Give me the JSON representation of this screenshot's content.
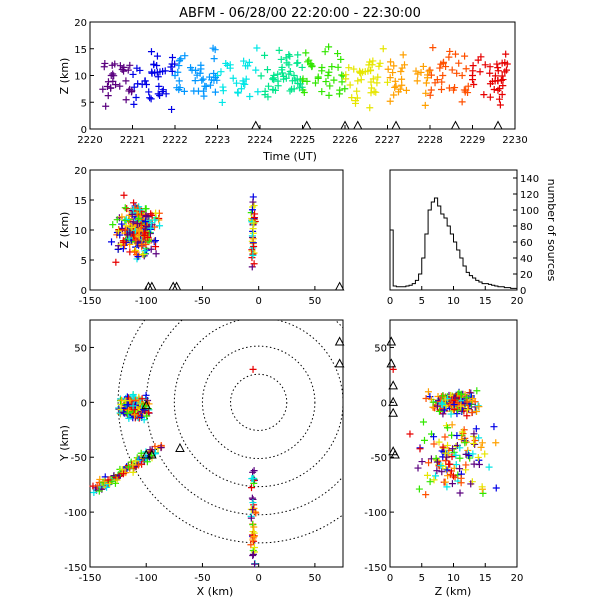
{
  "title": "ABFM - 06/28/00 22:20:00 - 22:30:00",
  "chart_data": [
    {
      "id": "time_height",
      "type": "scatter",
      "marker": "plus",
      "xlabel": "Time (UT)",
      "ylabel": "Z (km)",
      "xlim": [
        0,
        10
      ],
      "ylim": [
        0,
        20
      ],
      "xticks": [
        "2220",
        "2221",
        "2222",
        "2223",
        "2224",
        "2225",
        "2226",
        "2227",
        "2228",
        "2229",
        "2230"
      ],
      "yticks": [
        "0",
        "5",
        "10",
        "15",
        "20"
      ],
      "color_scale": [
        "#000000",
        "#5a007f",
        "#0000e6",
        "#0096ff",
        "#00e6e6",
        "#00e68c",
        "#32e600",
        "#e6e600",
        "#ffa000",
        "#ff5000",
        "#e60000"
      ],
      "triangles_x": [
        3.9,
        5.1,
        6.0,
        6.3,
        7.2,
        8.6,
        9.6
      ],
      "series": [
        {
          "x": [
            0.5,
            0.7,
            0.9,
            1.3,
            1.5,
            1.7,
            2.0
          ],
          "y": [
            10,
            8,
            11,
            9,
            12,
            7,
            10
          ]
        },
        {
          "x": [
            2.1,
            2.4,
            2.7,
            3.0,
            3.3,
            3.6
          ],
          "y": [
            9,
            11,
            8,
            10,
            12,
            9
          ]
        },
        {
          "x": [
            3.9,
            4.2,
            4.5,
            4.8,
            5.0,
            5.2
          ],
          "y": [
            11,
            8,
            13,
            10,
            9,
            12
          ]
        },
        {
          "x": [
            5.6,
            5.9,
            6.3,
            6.6,
            6.9,
            7.2
          ],
          "y": [
            10,
            13,
            9,
            11,
            15,
            8
          ]
        },
        {
          "x": [
            7.4,
            7.7,
            8.0,
            8.3,
            8.6,
            8.9
          ],
          "y": [
            12,
            9,
            11,
            10,
            14,
            8
          ]
        },
        {
          "x": [
            9.0,
            9.3,
            9.6,
            9.8
          ],
          "y": [
            10,
            12,
            9,
            11
          ]
        }
      ]
    },
    {
      "id": "xz_panel",
      "type": "scatter",
      "marker": "plus",
      "ylabel": "Z (km)",
      "xlim": [
        -150,
        75
      ],
      "ylim": [
        0,
        20
      ],
      "xticks": [
        "-150",
        "-100",
        "-50",
        "0",
        "50"
      ],
      "yticks": [
        "0",
        "5",
        "10",
        "15",
        "20"
      ],
      "triangles_x": [
        -98,
        -95,
        -76,
        -73,
        72
      ],
      "clusters": [
        {
          "x_center": -108,
          "z_center": 10,
          "count": 60
        },
        {
          "x_center": -5,
          "z_center": 10,
          "count": 15
        }
      ]
    },
    {
      "id": "height_histogram",
      "type": "bar",
      "xlim": [
        0,
        20
      ],
      "ylim": [
        0,
        150
      ],
      "xticks": [
        "0",
        "5",
        "10",
        "15",
        "20"
      ],
      "yticks": [
        "0",
        "20",
        "40",
        "60",
        "80",
        "100",
        "120",
        "140"
      ],
      "ylabel_right": "number of sources",
      "bin_width": 0.5,
      "values": [
        75,
        5,
        4,
        4,
        4,
        5,
        6,
        8,
        12,
        20,
        40,
        70,
        100,
        110,
        115,
        105,
        95,
        90,
        80,
        70,
        60,
        50,
        40,
        30,
        22,
        18,
        15,
        12,
        10,
        8,
        8,
        7,
        6,
        5,
        4,
        4,
        3,
        3,
        2,
        2
      ]
    },
    {
      "id": "plan_view",
      "type": "scatter",
      "marker": "plus",
      "xlabel": "X (km)",
      "ylabel": "Y (km)",
      "xlim": [
        -150,
        75
      ],
      "ylim": [
        -150,
        75
      ],
      "xticks": [
        "-150",
        "-100",
        "-50",
        "0",
        "50"
      ],
      "yticks": [
        "-150",
        "-100",
        "-50",
        "0",
        "50"
      ],
      "circle_radii_km": [
        25,
        50,
        75,
        100,
        125
      ],
      "clusters": [
        {
          "x_center": -110,
          "y_center": -5,
          "count": 60
        },
        {
          "x_center": -115,
          "y_center": -60,
          "count": 25
        },
        {
          "x_center": -5,
          "y_center": -110,
          "count": 15
        }
      ],
      "triangles": [
        [
          -100,
          -48
        ],
        [
          -95,
          -48
        ],
        [
          -70,
          -42
        ],
        [
          -100,
          -3
        ],
        [
          72,
          35
        ],
        [
          72,
          55
        ]
      ]
    },
    {
      "id": "zy_panel",
      "type": "scatter",
      "marker": "plus",
      "xlabel": "Z (km)",
      "xlim": [
        0,
        20
      ],
      "ylim": [
        -150,
        75
      ],
      "xticks": [
        "0",
        "5",
        "10",
        "15",
        "20"
      ],
      "yticks": [
        "-150",
        "-100",
        "-50",
        "0",
        "50"
      ],
      "clusters": [
        {
          "z_center": 10,
          "y_center": 0,
          "count": 60
        },
        {
          "z_center": 10,
          "y_center": -50,
          "count": 30
        }
      ]
    }
  ]
}
